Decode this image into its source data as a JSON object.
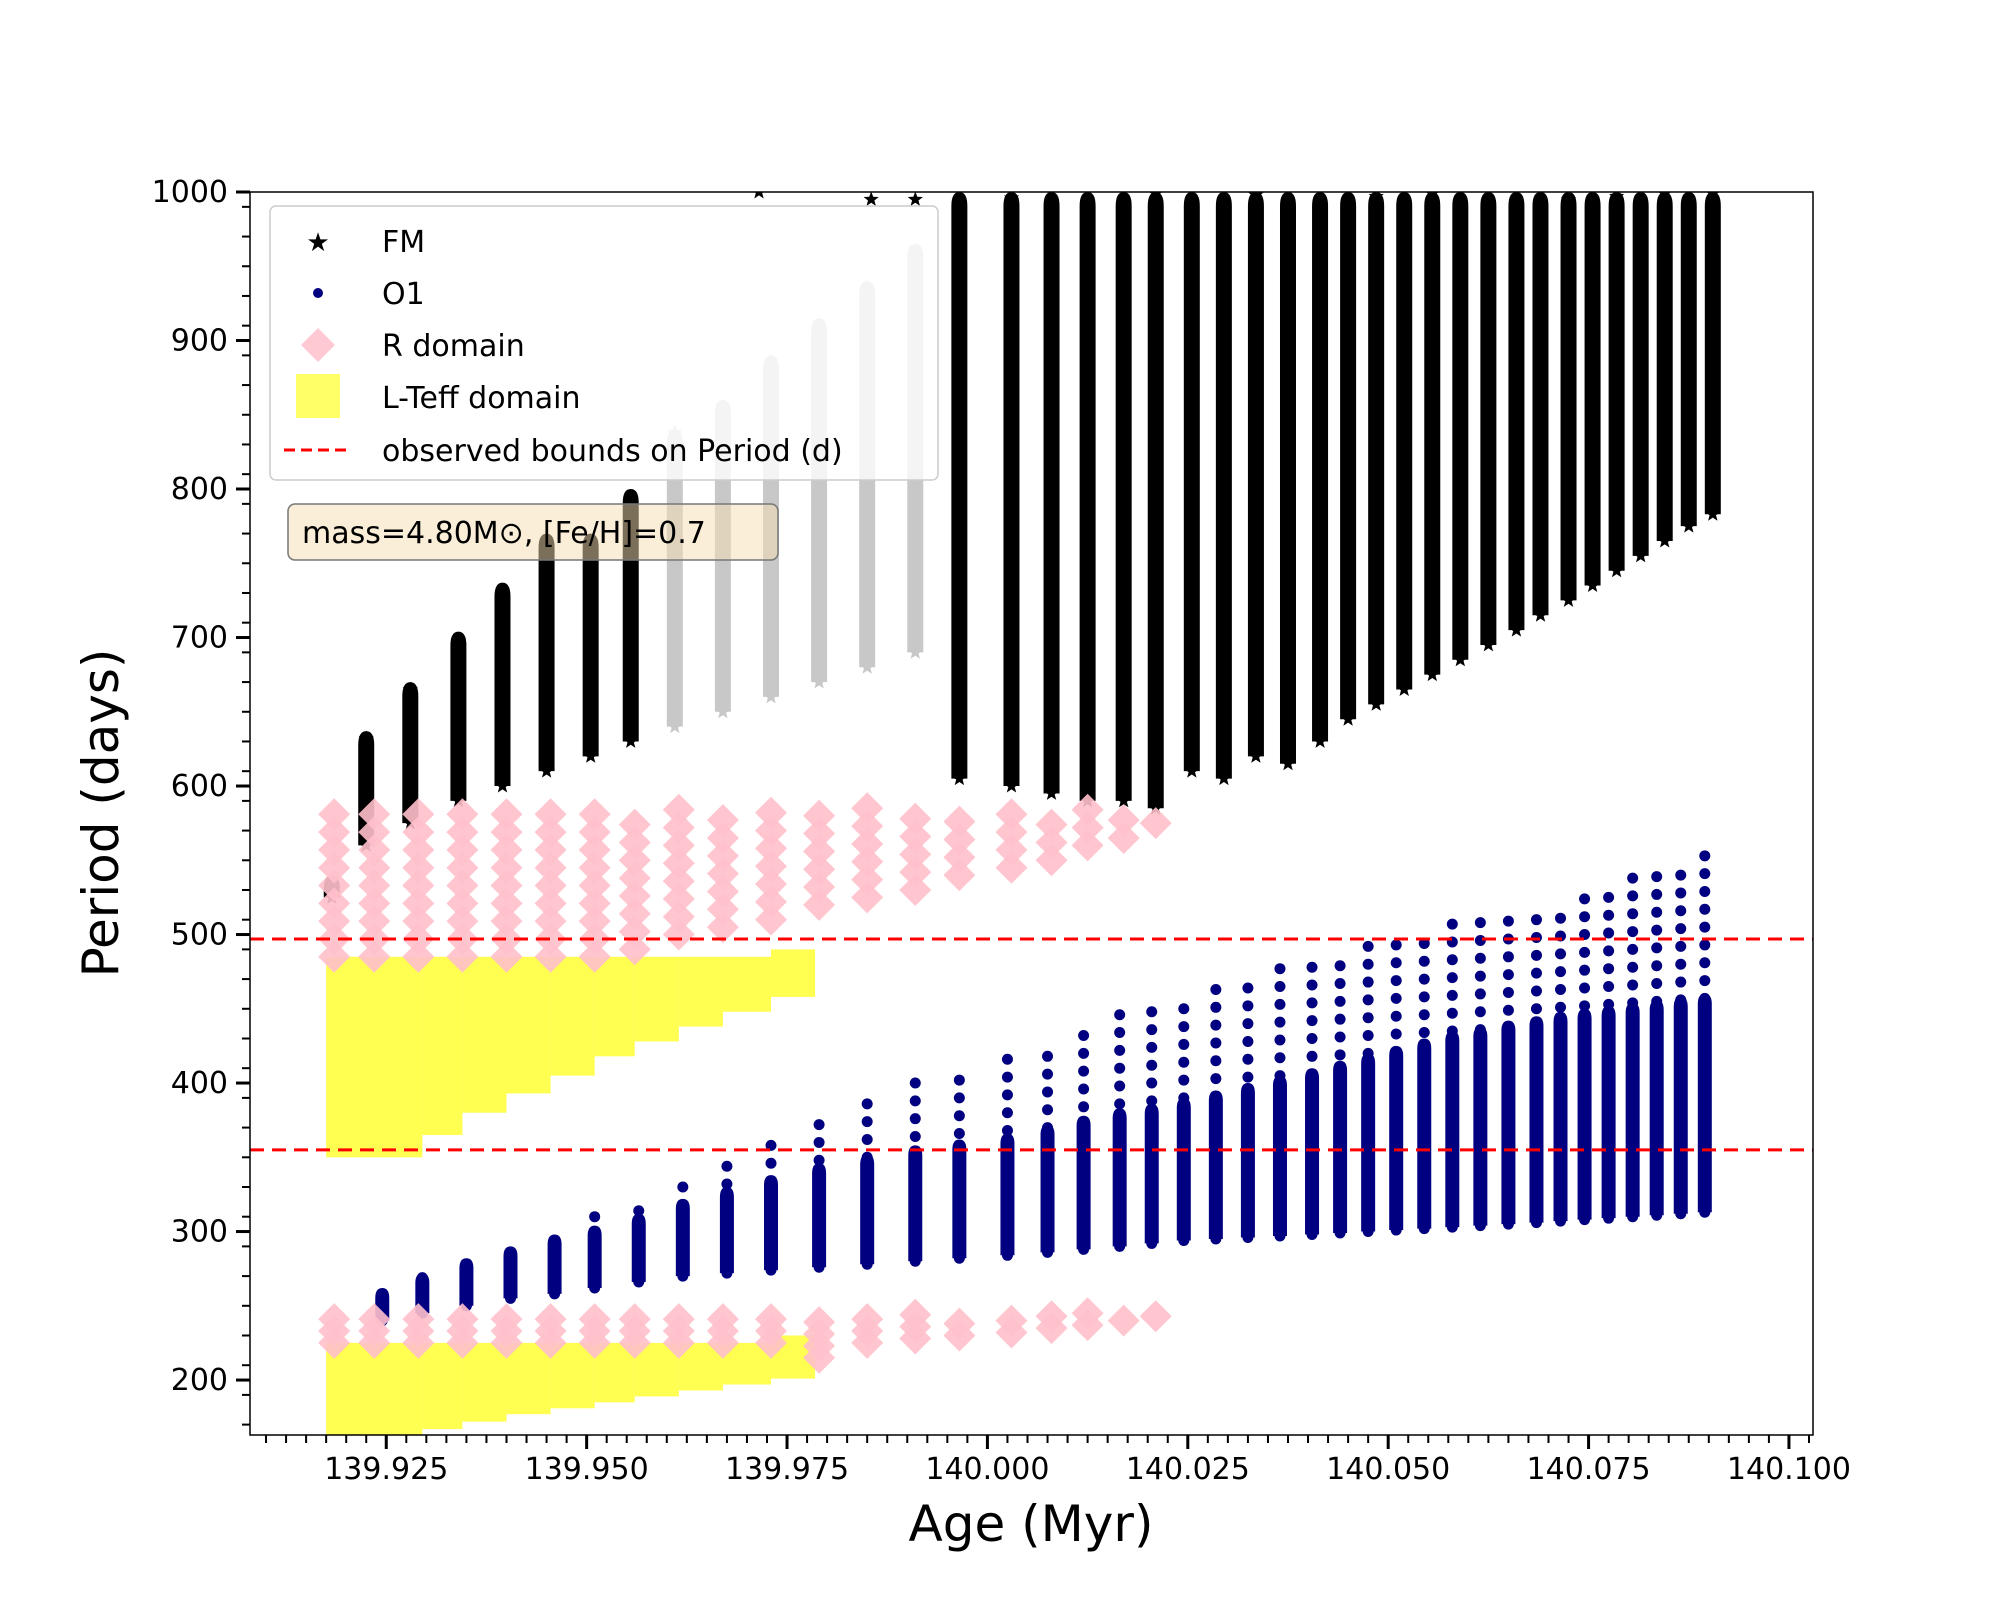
{
  "chart_data": {
    "type": "scatter",
    "title": "",
    "xlabel": "Age (Myr)",
    "ylabel": "Period (days)",
    "xlim": [
      139.908,
      140.103
    ],
    "ylim": [
      163,
      1000
    ],
    "xticks": [
      139.925,
      139.95,
      139.975,
      140.0,
      140.025,
      140.05,
      140.075,
      140.1
    ],
    "xtick_labels": [
      "139.925",
      "139.950",
      "139.975",
      "140.000",
      "140.025",
      "140.050",
      "140.075",
      "140.100"
    ],
    "yticks": [
      200,
      300,
      400,
      500,
      600,
      700,
      800,
      900,
      1000
    ],
    "ytick_labels": [
      "200",
      "300",
      "400",
      "500",
      "600",
      "700",
      "800",
      "900",
      "1000"
    ],
    "annotation": "mass=4.80M⊙, [Fe/H]=0.7",
    "legend": {
      "placement": "top-left",
      "entries": [
        {
          "label": "FM",
          "marker": "star",
          "color": "#000000"
        },
        {
          "label": "O1",
          "marker": "circle",
          "color": "#000080"
        },
        {
          "label": "R domain",
          "marker": "diamond",
          "color": "#ffc0cb"
        },
        {
          "label": "L-Teff domain",
          "marker": "square",
          "color": "#ffff33"
        },
        {
          "label": "observed bounds on Period (d)",
          "marker": "dashed-line",
          "color": "#ff0000"
        }
      ]
    },
    "bounds": [
      355,
      497
    ],
    "series": [
      {
        "name": "FM",
        "color": "#000000",
        "greyed_color": "#c8c8c8",
        "cycles": [
          {
            "age": 139.9182,
            "min": 525,
            "max": 540
          },
          {
            "age": 139.9225,
            "min": 560,
            "max": 637
          },
          {
            "age": 139.928,
            "min": 575,
            "max": 670
          },
          {
            "age": 139.934,
            "min": 590,
            "max": 704
          },
          {
            "age": 139.9395,
            "min": 600,
            "max": 737
          },
          {
            "age": 139.945,
            "min": 610,
            "max": 770
          },
          {
            "age": 139.9505,
            "min": 620,
            "max": 770
          },
          {
            "age": 139.9555,
            "min": 630,
            "max": 800
          },
          {
            "age": 139.961,
            "min": 640,
            "max": 840,
            "greyed": true
          },
          {
            "age": 139.967,
            "min": 650,
            "max": 860,
            "greyed": true
          },
          {
            "age": 139.973,
            "min": 660,
            "max": 890,
            "greyed": true
          },
          {
            "age": 139.979,
            "min": 670,
            "max": 915,
            "greyed": true
          },
          {
            "age": 139.985,
            "min": 680,
            "max": 940,
            "greyed": true
          },
          {
            "age": 139.991,
            "min": 690,
            "max": 965,
            "greyed": true
          },
          {
            "age": 139.9965,
            "min": 605,
            "max": 1000
          },
          {
            "age": 140.003,
            "min": 600,
            "max": 1000
          },
          {
            "age": 140.008,
            "min": 595,
            "max": 1000
          },
          {
            "age": 140.0125,
            "min": 590,
            "max": 1000
          },
          {
            "age": 140.017,
            "min": 590,
            "max": 1000
          },
          {
            "age": 140.021,
            "min": 585,
            "max": 1000
          },
          {
            "age": 140.0255,
            "min": 610,
            "max": 1000
          },
          {
            "age": 140.0295,
            "min": 605,
            "max": 1000
          },
          {
            "age": 140.0335,
            "min": 620,
            "max": 1000
          },
          {
            "age": 140.0375,
            "min": 615,
            "max": 1000
          },
          {
            "age": 140.0415,
            "min": 630,
            "max": 1000
          },
          {
            "age": 140.045,
            "min": 645,
            "max": 1000
          },
          {
            "age": 140.0485,
            "min": 655,
            "max": 1000
          },
          {
            "age": 140.052,
            "min": 665,
            "max": 1000
          },
          {
            "age": 140.0555,
            "min": 675,
            "max": 1000
          },
          {
            "age": 140.059,
            "min": 685,
            "max": 1000
          },
          {
            "age": 140.0625,
            "min": 695,
            "max": 1000
          },
          {
            "age": 140.066,
            "min": 705,
            "max": 1000
          },
          {
            "age": 140.069,
            "min": 715,
            "max": 1000
          },
          {
            "age": 140.0725,
            "min": 725,
            "max": 1000
          },
          {
            "age": 140.0755,
            "min": 735,
            "max": 1000
          },
          {
            "age": 140.0785,
            "min": 745,
            "max": 1000
          },
          {
            "age": 140.0815,
            "min": 755,
            "max": 1000
          },
          {
            "age": 140.0845,
            "min": 765,
            "max": 1000
          },
          {
            "age": 140.0875,
            "min": 775,
            "max": 1000
          },
          {
            "age": 140.0905,
            "min": 783,
            "max": 1000
          }
        ],
        "outliers": [
          {
            "x": 139.9715,
            "y": 1000
          },
          {
            "x": 139.9855,
            "y": 995
          },
          {
            "x": 139.991,
            "y": 995
          }
        ]
      },
      {
        "name": "O1",
        "color": "#000080",
        "cycles": [
          {
            "age": 139.9245,
            "min": 240,
            "max": 262,
            "peak": 262
          },
          {
            "age": 139.9295,
            "min": 245,
            "max": 272,
            "peak": 272
          },
          {
            "age": 139.935,
            "min": 250,
            "max": 282,
            "peak": 282
          },
          {
            "age": 139.9405,
            "min": 255,
            "max": 290,
            "peak": 290
          },
          {
            "age": 139.946,
            "min": 258,
            "max": 298,
            "peak": 305
          },
          {
            "age": 139.951,
            "min": 262,
            "max": 304,
            "peak": 315
          },
          {
            "age": 139.9565,
            "min": 266,
            "max": 312,
            "peak": 322
          },
          {
            "age": 139.962,
            "min": 270,
            "max": 322,
            "peak": 332
          },
          {
            "age": 139.9675,
            "min": 272,
            "max": 330,
            "peak": 345
          },
          {
            "age": 139.973,
            "min": 274,
            "max": 338,
            "peak": 360
          },
          {
            "age": 139.979,
            "min": 276,
            "max": 346,
            "peak": 375
          },
          {
            "age": 139.985,
            "min": 278,
            "max": 352,
            "peak": 390
          },
          {
            "age": 139.991,
            "min": 280,
            "max": 358,
            "peak": 405
          },
          {
            "age": 139.9965,
            "min": 282,
            "max": 362,
            "peak": 410
          },
          {
            "age": 140.0025,
            "min": 284,
            "max": 366,
            "peak": 418
          },
          {
            "age": 140.0075,
            "min": 286,
            "max": 372,
            "peak": 428
          },
          {
            "age": 140.012,
            "min": 288,
            "max": 378,
            "peak": 438
          },
          {
            "age": 140.0165,
            "min": 290,
            "max": 383,
            "peak": 448
          },
          {
            "age": 140.0205,
            "min": 292,
            "max": 386,
            "peak": 455
          },
          {
            "age": 140.0245,
            "min": 294,
            "max": 390,
            "peak": 460
          },
          {
            "age": 140.0285,
            "min": 295,
            "max": 395,
            "peak": 465
          },
          {
            "age": 140.0325,
            "min": 296,
            "max": 400,
            "peak": 472
          },
          {
            "age": 140.0365,
            "min": 297,
            "max": 405,
            "peak": 478
          },
          {
            "age": 140.0405,
            "min": 298,
            "max": 410,
            "peak": 485
          },
          {
            "age": 140.044,
            "min": 299,
            "max": 415,
            "peak": 490
          },
          {
            "age": 140.0475,
            "min": 300,
            "max": 420,
            "peak": 495
          },
          {
            "age": 140.051,
            "min": 301,
            "max": 425,
            "peak": 497
          },
          {
            "age": 140.0545,
            "min": 302,
            "max": 430,
            "peak": 502
          },
          {
            "age": 140.058,
            "min": 303,
            "max": 435,
            "peak": 508
          },
          {
            "age": 140.0615,
            "min": 304,
            "max": 438,
            "peak": 512
          },
          {
            "age": 140.065,
            "min": 305,
            "max": 442,
            "peak": 515
          },
          {
            "age": 140.0685,
            "min": 306,
            "max": 445,
            "peak": 518
          },
          {
            "age": 140.0715,
            "min": 307,
            "max": 448,
            "peak": 522
          },
          {
            "age": 140.0745,
            "min": 308,
            "max": 450,
            "peak": 528
          },
          {
            "age": 140.0775,
            "min": 309,
            "max": 452,
            "peak": 535
          },
          {
            "age": 140.0805,
            "min": 310,
            "max": 454,
            "peak": 540
          },
          {
            "age": 140.0835,
            "min": 311,
            "max": 456,
            "peak": 545
          },
          {
            "age": 140.0865,
            "min": 312,
            "max": 458,
            "peak": 548
          },
          {
            "age": 140.0895,
            "min": 313,
            "max": 460,
            "peak": 554
          }
        ]
      },
      {
        "name": "R domain",
        "color": "#ffc0cb",
        "fm_points": [
          {
            "x": 139.9185,
            "y1": 485,
            "y2": 585
          },
          {
            "x": 139.9235,
            "y1": 485,
            "y2": 585
          },
          {
            "x": 139.929,
            "y1": 485,
            "y2": 585
          },
          {
            "x": 139.9345,
            "y1": 485,
            "y2": 585
          },
          {
            "x": 139.94,
            "y1": 485,
            "y2": 585
          },
          {
            "x": 139.9455,
            "y1": 485,
            "y2": 585
          },
          {
            "x": 139.951,
            "y1": 485,
            "y2": 585
          },
          {
            "x": 139.956,
            "y1": 490,
            "y2": 585
          },
          {
            "x": 139.9615,
            "y1": 500,
            "y2": 585
          },
          {
            "x": 139.967,
            "y1": 505,
            "y2": 585
          },
          {
            "x": 139.973,
            "y1": 510,
            "y2": 585
          },
          {
            "x": 139.979,
            "y1": 520,
            "y2": 585
          },
          {
            "x": 139.985,
            "y1": 525,
            "y2": 585
          },
          {
            "x": 139.991,
            "y1": 530,
            "y2": 585
          },
          {
            "x": 139.9965,
            "y1": 540,
            "y2": 585
          },
          {
            "x": 140.003,
            "y1": 545,
            "y2": 585
          },
          {
            "x": 140.008,
            "y1": 550,
            "y2": 585
          },
          {
            "x": 140.0125,
            "y1": 560,
            "y2": 585
          },
          {
            "x": 140.017,
            "y1": 565,
            "y2": 585
          },
          {
            "x": 140.021,
            "y1": 575,
            "y2": 585
          }
        ],
        "o1_points": [
          {
            "x": 139.9185,
            "y1": 225,
            "y2": 245
          },
          {
            "x": 139.9235,
            "y1": 225,
            "y2": 245
          },
          {
            "x": 139.929,
            "y1": 225,
            "y2": 245
          },
          {
            "x": 139.9345,
            "y1": 225,
            "y2": 245
          },
          {
            "x": 139.94,
            "y1": 225,
            "y2": 245
          },
          {
            "x": 139.9455,
            "y1": 225,
            "y2": 245
          },
          {
            "x": 139.951,
            "y1": 225,
            "y2": 245
          },
          {
            "x": 139.956,
            "y1": 225,
            "y2": 245
          },
          {
            "x": 139.9615,
            "y1": 225,
            "y2": 245
          },
          {
            "x": 139.967,
            "y1": 225,
            "y2": 245
          },
          {
            "x": 139.973,
            "y1": 225,
            "y2": 245
          },
          {
            "x": 139.979,
            "y1": 215,
            "y2": 245
          },
          {
            "x": 139.985,
            "y1": 225,
            "y2": 245
          },
          {
            "x": 139.991,
            "y1": 228,
            "y2": 245
          },
          {
            "x": 139.9965,
            "y1": 230,
            "y2": 245
          },
          {
            "x": 140.003,
            "y1": 232,
            "y2": 245
          },
          {
            "x": 140.008,
            "y1": 235,
            "y2": 245
          },
          {
            "x": 140.0125,
            "y1": 237,
            "y2": 245
          },
          {
            "x": 140.017,
            "y1": 240,
            "y2": 245
          },
          {
            "x": 140.021,
            "y1": 243,
            "y2": 247
          }
        ]
      },
      {
        "name": "L-Teff domain",
        "color": "#ffff33",
        "fm_boxes": [
          {
            "x0": 139.9175,
            "x1": 139.9295,
            "y0": 350,
            "y1": 485
          },
          {
            "x0": 139.9295,
            "x1": 139.9345,
            "y0": 365,
            "y1": 485
          },
          {
            "x0": 139.9345,
            "x1": 139.94,
            "y0": 380,
            "y1": 485
          },
          {
            "x0": 139.94,
            "x1": 139.9455,
            "y0": 393,
            "y1": 485
          },
          {
            "x0": 139.9455,
            "x1": 139.951,
            "y0": 405,
            "y1": 485
          },
          {
            "x0": 139.951,
            "x1": 139.956,
            "y0": 418,
            "y1": 485
          },
          {
            "x0": 139.956,
            "x1": 139.9615,
            "y0": 428,
            "y1": 485
          },
          {
            "x0": 139.9615,
            "x1": 139.967,
            "y0": 438,
            "y1": 485
          },
          {
            "x0": 139.967,
            "x1": 139.973,
            "y0": 448,
            "y1": 485
          },
          {
            "x0": 139.973,
            "x1": 139.9785,
            "y0": 458,
            "y1": 490
          }
        ],
        "o1_boxes": [
          {
            "x0": 139.9175,
            "x1": 139.9295,
            "y0": 163,
            "y1": 225
          },
          {
            "x0": 139.9295,
            "x1": 139.9345,
            "y0": 167,
            "y1": 225
          },
          {
            "x0": 139.9345,
            "x1": 139.94,
            "y0": 172,
            "y1": 225
          },
          {
            "x0": 139.94,
            "x1": 139.9455,
            "y0": 177,
            "y1": 225
          },
          {
            "x0": 139.9455,
            "x1": 139.951,
            "y0": 181,
            "y1": 225
          },
          {
            "x0": 139.951,
            "x1": 139.956,
            "y0": 185,
            "y1": 225
          },
          {
            "x0": 139.956,
            "x1": 139.9615,
            "y0": 189,
            "y1": 225
          },
          {
            "x0": 139.9615,
            "x1": 139.967,
            "y0": 193,
            "y1": 225
          },
          {
            "x0": 139.967,
            "x1": 139.973,
            "y0": 197,
            "y1": 225
          },
          {
            "x0": 139.973,
            "x1": 139.9785,
            "y0": 201,
            "y1": 230
          }
        ]
      }
    ]
  }
}
